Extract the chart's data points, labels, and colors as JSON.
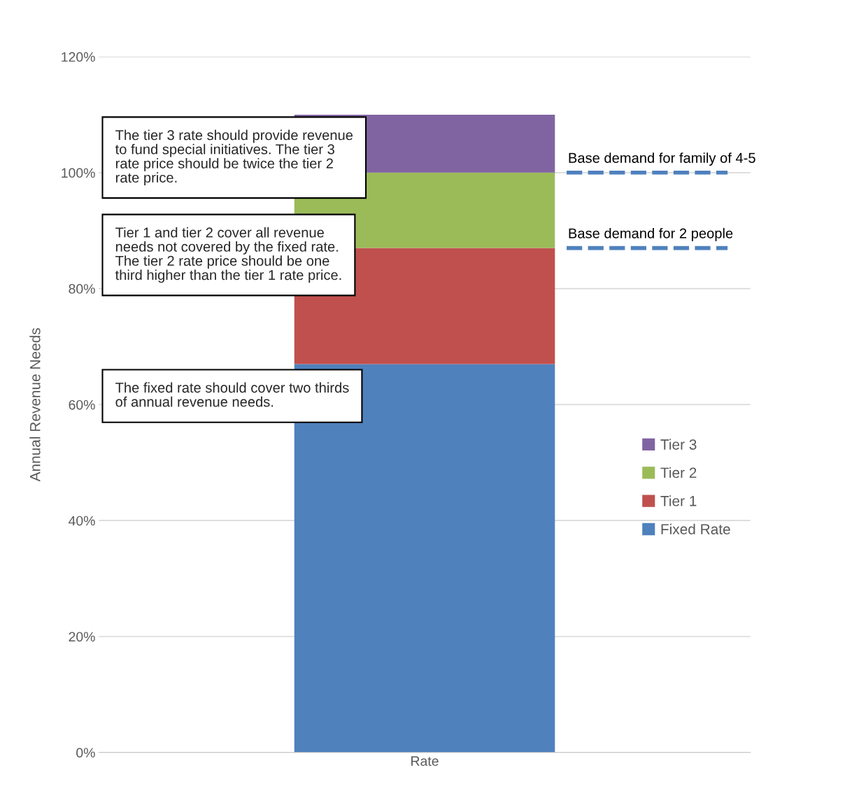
{
  "chart_data": {
    "type": "bar",
    "stacked": true,
    "categories": [
      "Rate"
    ],
    "ylabel": "Annual Revenue Needs",
    "series": [
      {
        "name": "Fixed Rate",
        "color": "#4f81bd",
        "values": [
          67
        ]
      },
      {
        "name": "Tier 1",
        "color": "#c0504d",
        "values": [
          20
        ]
      },
      {
        "name": "Tier 2",
        "color": "#9bbb59",
        "values": [
          13
        ]
      },
      {
        "name": "Tier 3",
        "color": "#8064a2",
        "values": [
          10
        ]
      }
    ],
    "ylim": [
      0,
      120
    ],
    "yticks": [
      {
        "value": 0,
        "label": "0%"
      },
      {
        "value": 20,
        "label": "20%"
      },
      {
        "value": 40,
        "label": "40%"
      },
      {
        "value": 60,
        "label": "60%"
      },
      {
        "value": 80,
        "label": "80%"
      },
      {
        "value": 100,
        "label": "100%"
      },
      {
        "value": 120,
        "label": "120%"
      }
    ],
    "grid": "y",
    "legend": "right",
    "ref_lines": [
      {
        "axis": "y",
        "value": 100,
        "label": "Base demand for family of 4-5",
        "color": "#4f81bd",
        "line_style": "dashed"
      },
      {
        "axis": "y",
        "value": 87,
        "label": "Base demand for 2 people",
        "color": "#4f81bd",
        "line_style": "dashed"
      }
    ],
    "annotations": [
      "The tier 3 rate should provide revenue\nto fund special initiatives. The tier 3\nrate price should be twice the tier 2\nrate price.",
      "Tier 1 and tier 2 cover all revenue\nneeds not covered by the fixed rate.\nThe tier 2 rate price should be one\nthird higher than the tier 1 rate price.",
      "The fixed rate should cover two thirds\nof annual revenue needs."
    ]
  }
}
